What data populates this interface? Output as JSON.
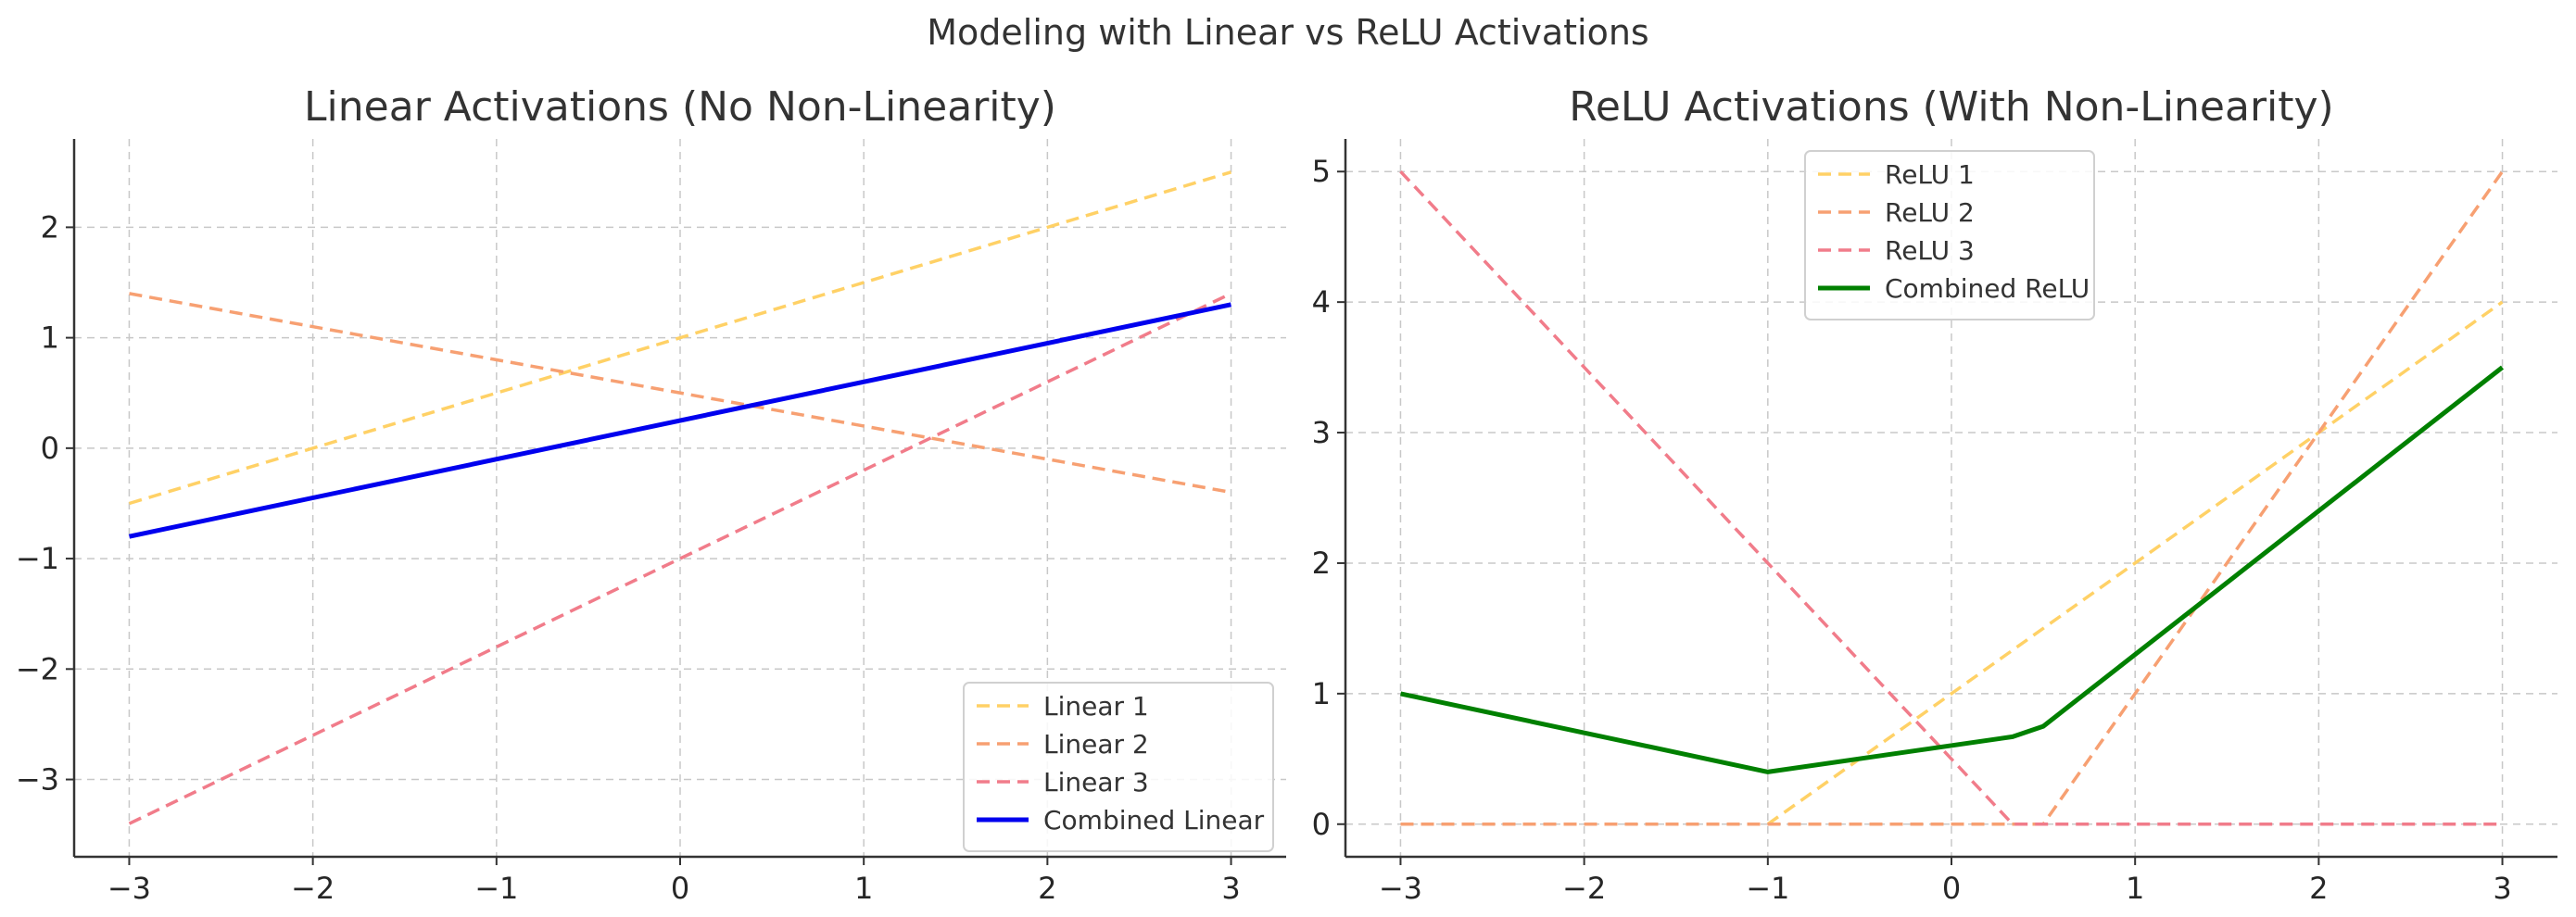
{
  "figure_title": "Modeling with Linear vs ReLU Activations",
  "chart_data": [
    {
      "type": "line",
      "title": "Linear Activations (No Non-Linearity)",
      "xlabel": "",
      "ylabel": "",
      "xlim": [
        -3.3,
        3.3
      ],
      "ylim": [
        -3.7,
        2.8
      ],
      "xticks": [
        -3,
        -2,
        -1,
        0,
        1,
        2,
        3
      ],
      "yticks": [
        -3,
        -2,
        -1,
        0,
        1,
        2
      ],
      "xtick_labels": [
        "−3",
        "−2",
        "−1",
        "0",
        "1",
        "2",
        "3"
      ],
      "ytick_labels": [
        "−3",
        "−2",
        "−1",
        "0",
        "1",
        "2"
      ],
      "grid": true,
      "legend_position": "bottom-right",
      "series": [
        {
          "name": "Linear 1",
          "color": "#ffd166",
          "style": "dashed",
          "x": [
            -3,
            3
          ],
          "y": [
            -0.5,
            2.5
          ]
        },
        {
          "name": "Linear 2",
          "color": "#f7a072",
          "style": "dashed",
          "x": [
            -3,
            3
          ],
          "y": [
            1.4,
            -0.4
          ]
        },
        {
          "name": "Linear 3",
          "color": "#f17c8a",
          "style": "dashed",
          "x": [
            -3,
            3
          ],
          "y": [
            -3.4,
            1.4
          ]
        },
        {
          "name": "Combined Linear",
          "color": "#0000ee",
          "style": "solid",
          "x": [
            -3,
            3
          ],
          "y": [
            -0.8,
            1.3
          ]
        }
      ]
    },
    {
      "type": "line",
      "title": "ReLU Activations (With Non-Linearity)",
      "xlabel": "",
      "ylabel": "",
      "xlim": [
        -3.3,
        3.3
      ],
      "ylim": [
        -0.25,
        5.25
      ],
      "xticks": [
        -3,
        -2,
        -1,
        0,
        1,
        2,
        3
      ],
      "yticks": [
        0,
        1,
        2,
        3,
        4,
        5
      ],
      "xtick_labels": [
        "−3",
        "−2",
        "−1",
        "0",
        "1",
        "2",
        "3"
      ],
      "ytick_labels": [
        "0",
        "1",
        "2",
        "3",
        "4",
        "5"
      ],
      "grid": true,
      "legend_position": "top-center",
      "series": [
        {
          "name": "ReLU 1",
          "color": "#ffd166",
          "style": "dashed",
          "x": [
            -3,
            -1,
            3
          ],
          "y": [
            0,
            0,
            4
          ]
        },
        {
          "name": "ReLU 2",
          "color": "#f7a072",
          "style": "dashed",
          "x": [
            -3,
            0.5,
            3
          ],
          "y": [
            0,
            0,
            5
          ]
        },
        {
          "name": "ReLU 3",
          "color": "#f17c8a",
          "style": "dashed",
          "x": [
            -3,
            0.333,
            3
          ],
          "y": [
            5,
            0,
            0
          ]
        },
        {
          "name": "Combined ReLU",
          "color": "#008000",
          "style": "solid",
          "x": [
            -3,
            -1,
            0.333,
            0.5,
            3
          ],
          "y": [
            1.0,
            0.4,
            0.67,
            0.75,
            3.5
          ]
        }
      ]
    }
  ]
}
